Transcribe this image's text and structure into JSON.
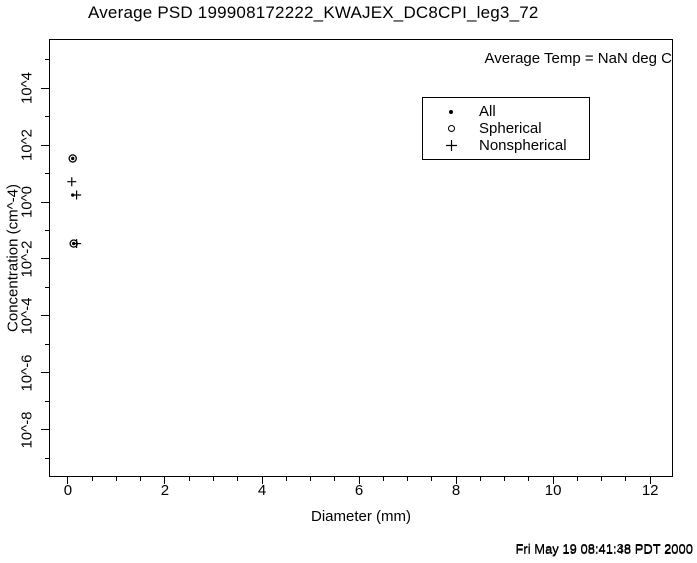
{
  "title": "Average PSD 199908172222_KWAJEX_DC8CPI_leg3_72",
  "annotation": "Average Temp = NaN deg C",
  "timestamp": {
    "line1": "Fri May 19 08:41:38 PDT 2000",
    "line2": "Fri May 19 08:41:48 PDT 2000"
  },
  "legend": {
    "items": [
      {
        "marker": "dot",
        "label": "All"
      },
      {
        "marker": "open-circle",
        "label": "Spherical"
      },
      {
        "marker": "plus",
        "label": "Nonspherical"
      }
    ]
  },
  "chart_data": {
    "type": "scatter",
    "title": "Average PSD 199908172222_KWAJEX_DC8CPI_leg3_72",
    "xlabel": "Diameter (mm)",
    "ylabel": "Concentration (cm^-4)",
    "annotation": "Average Temp = NaN deg C",
    "grid": false,
    "legend_position": "upper-right-inside",
    "x_axis": {
      "min": -0.39,
      "max": 12.47,
      "major_ticks": [
        0,
        2,
        4,
        6,
        8,
        10,
        12
      ],
      "minor_step": 0.5
    },
    "y_axis": {
      "scale": "log10",
      "min_exp": -9.65,
      "max_exp": 5.72,
      "major_tick_exps": [
        4,
        2,
        0,
        -2,
        -4,
        -6,
        -8
      ],
      "major_tick_labels": [
        "10^4",
        "10^2",
        "10^0",
        "10^-2",
        "10^-4",
        "10^-6",
        "10^-8"
      ],
      "minor_tick_exps": [
        5,
        3,
        1,
        -1,
        -3,
        -5,
        -7,
        -9
      ]
    },
    "series": [
      {
        "name": "All",
        "marker": "dot",
        "points": [
          {
            "x": 0.08,
            "y": 35
          },
          {
            "x": 0.08,
            "y": 1.8
          },
          {
            "x": 0.1,
            "y": 0.035
          }
        ]
      },
      {
        "name": "Spherical",
        "marker": "open-circle",
        "points": [
          {
            "x": 0.08,
            "y": 35
          },
          {
            "x": 0.1,
            "y": 0.035
          }
        ]
      },
      {
        "name": "Nonspherical",
        "marker": "plus",
        "points": [
          {
            "x": 0.06,
            "y": 5.3
          },
          {
            "x": 0.16,
            "y": 1.8
          },
          {
            "x": 0.16,
            "y": 0.035
          }
        ]
      }
    ],
    "colors": {
      "foreground": "#000000",
      "background": "#ffffff"
    }
  }
}
